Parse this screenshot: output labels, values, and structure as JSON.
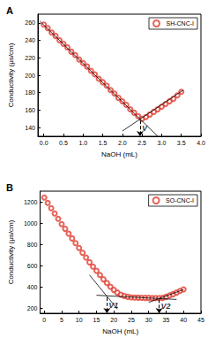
{
  "chart_data": [
    {
      "type": "scatter",
      "title": "A",
      "x_label": "NaOH (mL)",
      "y_label": "Conductivity (μs/cm)",
      "xlim": [
        -0.15,
        4.0
      ],
      "xticks": [
        {
          "value": 0,
          "label": "0.0"
        },
        0.5,
        {
          "value": 1,
          "label": "1.0"
        },
        1.5,
        {
          "value": 2,
          "label": "2.0"
        },
        2.5,
        {
          "value": 3,
          "label": "3.0"
        },
        3.5,
        {
          "value": 4,
          "label": "4.0"
        }
      ],
      "ylim": [
        130,
        270
      ],
      "yticks": [
        140,
        160,
        180,
        200,
        220,
        240,
        260
      ],
      "grid": false,
      "legend": "upper right",
      "series": [
        {
          "name": "SH-CNC-I",
          "type": "scatter",
          "marker": "open circle",
          "color": "#e03c31",
          "x": [
            0,
            0.1,
            0.2,
            0.3,
            0.4,
            0.5,
            0.6,
            0.7,
            0.8,
            0.9,
            1.0,
            1.1,
            1.2,
            1.3,
            1.4,
            1.5,
            1.6,
            1.7,
            1.8,
            1.9,
            2.0,
            2.1,
            2.2,
            2.3,
            2.4,
            2.5,
            2.6,
            2.7,
            2.8,
            2.9,
            3.0,
            3.1,
            3.2,
            3.3,
            3.4,
            3.5
          ],
          "values": [
            258,
            254,
            249,
            245,
            240,
            236,
            232,
            227,
            223,
            218,
            214,
            210,
            205,
            201,
            196,
            192,
            188,
            183,
            179,
            174,
            170,
            166,
            161,
            157,
            153,
            150,
            152,
            155,
            158,
            161,
            164,
            167,
            170,
            173,
            177,
            181
          ]
        },
        {
          "type": "line",
          "line_style": "solid",
          "color": "#000000",
          "x": [
            -0.1,
            2.9
          ],
          "values": [
            262,
            130
          ]
        },
        {
          "type": "line",
          "line_style": "solid",
          "color": "#000000",
          "x": [
            2.0,
            3.55
          ],
          "values": [
            136,
            183
          ]
        }
      ],
      "annotations": [
        {
          "text": "V",
          "x": 2.45,
          "y": 148
        }
      ]
    },
    {
      "type": "scatter",
      "title": "B",
      "x_label": "NaOH (mL)",
      "y_label": "Conductivity (μs/cm)",
      "xlim": [
        -1.2,
        45
      ],
      "xticks": [
        0,
        5,
        10,
        15,
        20,
        25,
        30,
        35,
        40,
        45
      ],
      "ylim": [
        150,
        1300
      ],
      "yticks": [
        200,
        400,
        600,
        800,
        1000,
        1200
      ],
      "grid": false,
      "legend": "upper right",
      "series": [
        {
          "name": "SO-CNC-I",
          "type": "scatter",
          "marker": "open circle",
          "color": "#e03c31",
          "x": [
            0,
            1,
            2,
            3,
            4,
            5,
            6,
            7,
            8,
            9,
            10,
            11,
            12,
            13,
            14,
            15,
            16,
            17,
            18,
            19,
            20,
            21,
            22,
            23,
            24,
            25,
            26,
            27,
            28,
            29,
            30,
            31,
            32,
            33,
            34,
            35,
            36,
            37,
            38,
            39,
            40
          ],
          "values": [
            1240,
            1190,
            1140,
            1090,
            1040,
            990,
            945,
            900,
            855,
            810,
            765,
            720,
            675,
            630,
            590,
            550,
            510,
            470,
            435,
            400,
            370,
            345,
            325,
            312,
            305,
            300,
            298,
            297,
            296,
            295,
            295,
            294,
            293,
            293,
            295,
            305,
            318,
            330,
            345,
            360,
            375
          ]
        },
        {
          "type": "line",
          "line_style": "solid",
          "color": "#000000",
          "x": [
            13,
            21
          ],
          "values": [
            510,
            190
          ]
        },
        {
          "type": "line",
          "line_style": "solid",
          "color": "#000000",
          "x": [
            15,
            38
          ],
          "values": [
            320,
            280
          ]
        },
        {
          "type": "line",
          "line_style": "solid",
          "color": "#000000",
          "x": [
            30,
            40
          ],
          "values": [
            253,
            373
          ]
        }
      ],
      "annotations": [
        {
          "text": "V1",
          "x": 18,
          "y": 300
        },
        {
          "text": "V2",
          "x": 33,
          "y": 280
        }
      ]
    }
  ]
}
